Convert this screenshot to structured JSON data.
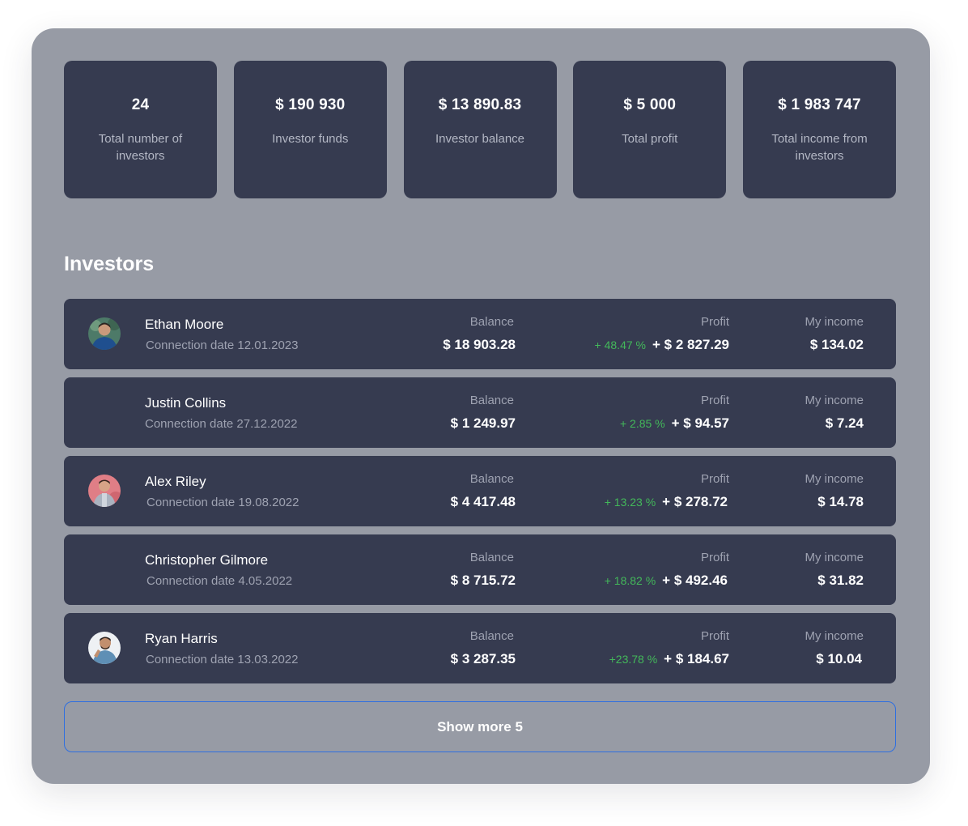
{
  "stats": [
    {
      "value": "24",
      "label": "Total number of investors"
    },
    {
      "value": "$ 190 930",
      "label": "Investor funds"
    },
    {
      "value": "$ 13 890.83",
      "label": "Investor balance"
    },
    {
      "value": "$ 5 000",
      "label": "Total profit"
    },
    {
      "value": "$ 1 983 747",
      "label": "Total income from investors"
    }
  ],
  "investors_title": "Investors",
  "column_labels": {
    "balance": "Balance",
    "profit": "Profit",
    "income": "My income"
  },
  "investors": [
    {
      "name": "Ethan Moore",
      "date": "Connection date 12.01.2023",
      "balance": "$ 18 903.28",
      "profit_pct": "+ 48.47 %",
      "profit": "+ $ 2 827.29",
      "income": "$ 134.02",
      "avatar": "photo"
    },
    {
      "name": "Justin Collins",
      "date": "Connection date 27.12.2022",
      "balance": "$ 1 249.97",
      "profit_pct": "+ 2.85 %",
      "profit": "+ $ 94.57",
      "income": "$ 7.24",
      "avatar": "none"
    },
    {
      "name": "Alex Riley",
      "date": "Connection date 19.08.2022",
      "balance": "$ 4 417.48",
      "profit_pct": "+ 13.23 %",
      "profit": "+ $ 278.72",
      "income": "$ 14.78",
      "avatar": "photo"
    },
    {
      "name": "Christopher Gilmore",
      "date": "Connection date 4.05.2022",
      "balance": "$ 8 715.72",
      "profit_pct": "+ 18.82 %",
      "profit": "+ $ 492.46",
      "income": "$ 31.82",
      "avatar": "none"
    },
    {
      "name": "Ryan Harris",
      "date": "Connection date 13.03.2022",
      "balance": "$ 3 287.35",
      "profit_pct": "+23.78 %",
      "profit": "+ $ 184.67",
      "income": "$ 10.04",
      "avatar": "photo"
    }
  ],
  "show_more_label": "Show more 5",
  "colors": {
    "panel": "#979ba5",
    "card": "#363b50",
    "profit_positive": "#43b85a",
    "button_border": "#2f6fe0"
  }
}
